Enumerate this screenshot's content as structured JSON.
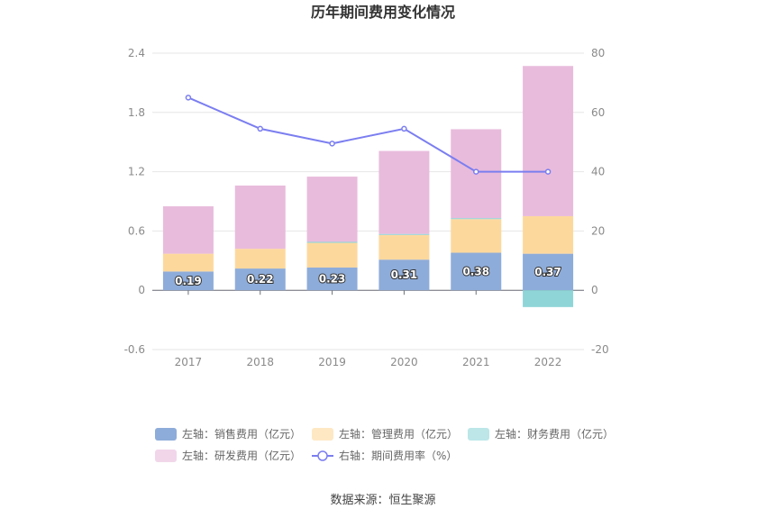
{
  "chart_data": {
    "type": "bar",
    "title": "历年期间费用变化情况",
    "categories": [
      "2017",
      "2018",
      "2019",
      "2020",
      "2021",
      "2022"
    ],
    "series": [
      {
        "name": "左轴：销售费用（亿元）",
        "axis": "left",
        "kind": "bar",
        "color": "#8eacd9",
        "values": [
          0.19,
          0.22,
          0.23,
          0.31,
          0.38,
          0.37
        ],
        "labels": [
          "0.19",
          "0.22",
          "0.23",
          "0.31",
          "0.38",
          "0.37"
        ]
      },
      {
        "name": "左轴：管理费用（亿元）",
        "axis": "left",
        "kind": "bar",
        "color": "#fdd89d",
        "values": [
          0.18,
          0.2,
          0.25,
          0.25,
          0.34,
          0.38
        ]
      },
      {
        "name": "左轴：财务费用（亿元）",
        "axis": "left",
        "kind": "bar",
        "color": "#8fd5d8",
        "values": [
          0.0,
          0.0,
          0.01,
          0.01,
          0.01,
          -0.17
        ]
      },
      {
        "name": "左轴：研发费用（亿元）",
        "axis": "left",
        "kind": "bar",
        "color": "#e8bbdc",
        "values": [
          0.48,
          0.64,
          0.66,
          0.84,
          0.9,
          1.52
        ]
      },
      {
        "name": "右轴：期间费用率（%）",
        "axis": "right",
        "kind": "line",
        "color": "#7b7ef0",
        "values": [
          65,
          54.5,
          49.5,
          54.5,
          40,
          40
        ]
      }
    ],
    "y_left": {
      "min": -0.6,
      "max": 2.4,
      "ticks": [
        "-0.6",
        "0",
        "0.6",
        "1.2",
        "1.8",
        "2.4"
      ]
    },
    "y_right": {
      "min": -20,
      "max": 80,
      "ticks": [
        "-20",
        "0",
        "20",
        "40",
        "60",
        "80"
      ]
    },
    "grid": true,
    "legend_position": "bottom"
  },
  "source": "数据来源：恒生聚源"
}
